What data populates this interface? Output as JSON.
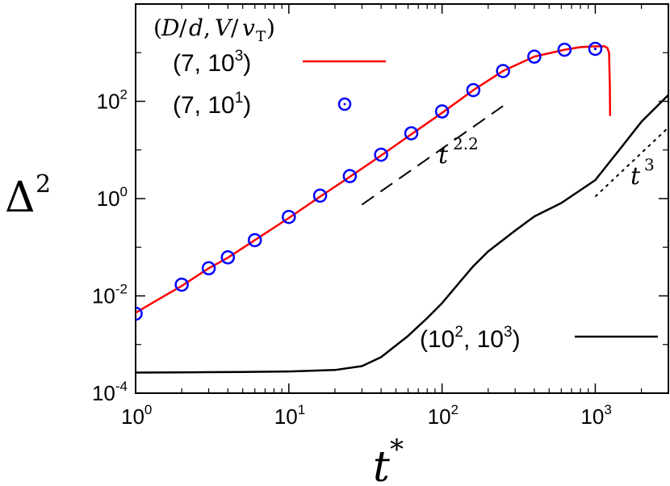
{
  "chart_data": {
    "type": "line",
    "x_scale": "log",
    "y_scale": "log",
    "xlim": [
      1,
      3000
    ],
    "ylim": [
      0.0001,
      10000
    ],
    "grid": false,
    "xlabel": "t*",
    "ylabel": "Δ²",
    "x_ticks": [
      {
        "value": 1,
        "base": "10",
        "exp": "0"
      },
      {
        "value": 10,
        "base": "10",
        "exp": "1"
      },
      {
        "value": 100,
        "base": "10",
        "exp": "2"
      },
      {
        "value": 1000,
        "base": "10",
        "exp": "3"
      }
    ],
    "y_ticks": [
      {
        "value": 0.0001,
        "base": "10",
        "exp": "-4"
      },
      {
        "value": 0.01,
        "base": "10",
        "exp": "-2"
      },
      {
        "value": 1,
        "base": "10",
        "exp": "0"
      },
      {
        "value": 100,
        "base": "10",
        "exp": "2"
      }
    ],
    "legend_title": "(D/d, V/v_T)",
    "legend_placement": "top-left",
    "series": [
      {
        "name": "(7, 10^3)",
        "label_main": "(7, 10",
        "label_exp": "3",
        "label_end": ")",
        "style": "line",
        "color": "#ff0000",
        "x": [
          1,
          1.5,
          2,
          3,
          4,
          6,
          10,
          16,
          25,
          40,
          63,
          100,
          160,
          250,
          400,
          630,
          800,
          1000,
          1150,
          1200,
          1230,
          1245,
          1250
        ],
        "y": [
          0.0045,
          0.0095,
          0.016,
          0.037,
          0.061,
          0.14,
          0.4,
          1.1,
          2.8,
          7.7,
          21,
          58,
          170,
          420,
          830,
          1150,
          1300,
          1350,
          1350,
          1250,
          1000,
          200,
          50
        ]
      },
      {
        "name": "(7, 10^1)",
        "label_main": "(7, 10",
        "label_exp": "1",
        "label_end": ")",
        "style": "markers",
        "color": "#0000ff",
        "x": [
          1,
          2,
          3,
          4,
          6,
          10,
          16,
          25,
          40,
          63,
          100,
          160,
          250,
          400,
          630,
          1000
        ],
        "y": [
          0.0043,
          0.017,
          0.037,
          0.062,
          0.14,
          0.42,
          1.15,
          2.9,
          8,
          22,
          62,
          170,
          420,
          830,
          1150,
          1200
        ]
      },
      {
        "name": "(10^2, 10^3)",
        "label_main": "(10",
        "label_mid": ", 10",
        "label_exp1": "2",
        "label_exp2": "3",
        "label_end": ")",
        "style": "line",
        "color": "#000000",
        "x": [
          1,
          2,
          5,
          10,
          20,
          30,
          40,
          60,
          80,
          100,
          130,
          160,
          200,
          300,
          400,
          600,
          1000,
          1500,
          2000,
          3000
        ],
        "y": [
          0.000265,
          0.000268,
          0.000272,
          0.00028,
          0.0003,
          0.00036,
          0.00055,
          0.0015,
          0.0035,
          0.0071,
          0.019,
          0.041,
          0.082,
          0.22,
          0.43,
          0.81,
          2.4,
          12,
          38,
          135
        ]
      }
    ],
    "annotations": [
      {
        "text_base": "t",
        "text_exp": "2.2",
        "style": "dashed",
        "x": [
          30,
          250
        ],
        "y": [
          0.75,
          80
        ]
      },
      {
        "text_base": "t",
        "text_exp": "3",
        "style": "dotted",
        "x": [
          1000,
          3000
        ],
        "y": [
          1.1,
          29
        ]
      }
    ]
  }
}
